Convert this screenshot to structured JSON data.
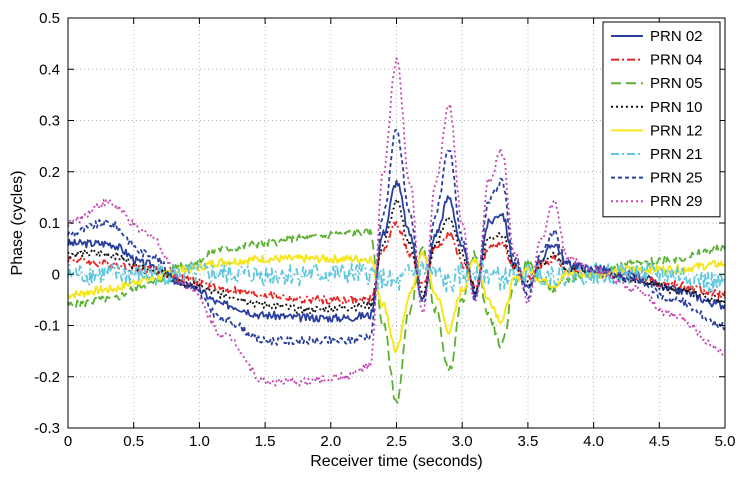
{
  "chart_data": {
    "type": "line",
    "title": "",
    "xlabel": "Receiver time (seconds)",
    "ylabel": "Phase (cycles)",
    "xlim": [
      0,
      5
    ],
    "ylim": [
      -0.3,
      0.5
    ],
    "grid": true,
    "legend_position": "top-right",
    "xticks": [
      0,
      0.5,
      1,
      1.5,
      2,
      2.5,
      3,
      3.5,
      4,
      4.5,
      5
    ],
    "xtick_labels": [
      "0",
      "0.5",
      "1.0",
      "1.5",
      "2.0",
      "2.5",
      "3.0",
      "3.5",
      "4.0",
      "4.5",
      "5.0"
    ],
    "yticks": [
      -0.3,
      -0.2,
      -0.1,
      0,
      0.1,
      0.2,
      0.3,
      0.4,
      0.5
    ],
    "ytick_labels": [
      "-0.3",
      "-0.2",
      "-0.1",
      "0",
      "0.1",
      "0.2",
      "0.3",
      "0.4",
      "0.5"
    ],
    "series": [
      {
        "name": "PRN 02",
        "color": "#2a3f9e",
        "dash": "solid",
        "x": [
          0,
          0.3,
          0.6,
          0.9,
          1.2,
          1.5,
          1.8,
          2.1,
          2.3,
          2.4,
          2.5,
          2.6,
          2.7,
          2.8,
          2.9,
          3.0,
          3.1,
          3.2,
          3.3,
          3.4,
          3.5,
          3.6,
          3.7,
          3.8,
          4.0,
          4.3,
          4.6,
          5.0
        ],
        "y": [
          0.06,
          0.06,
          0.02,
          -0.02,
          -0.06,
          -0.08,
          -0.085,
          -0.085,
          -0.08,
          0.08,
          0.18,
          0.08,
          -0.05,
          0.08,
          0.15,
          0.05,
          -0.04,
          0.1,
          0.12,
          0.02,
          -0.03,
          0.03,
          0.06,
          0.02,
          0.01,
          0.0,
          -0.03,
          -0.06
        ]
      },
      {
        "name": "PRN 04",
        "color": "#e8231f",
        "dash": "dashdot",
        "x": [
          0,
          0.3,
          0.6,
          0.9,
          1.2,
          1.5,
          1.8,
          2.1,
          2.3,
          2.4,
          2.5,
          2.6,
          2.7,
          2.8,
          2.9,
          3.0,
          3.1,
          3.2,
          3.3,
          3.4,
          3.5,
          3.6,
          3.7,
          3.8,
          4.0,
          4.3,
          4.6,
          5.0
        ],
        "y": [
          0.03,
          0.02,
          0.01,
          -0.01,
          -0.03,
          -0.04,
          -0.05,
          -0.05,
          -0.05,
          0.05,
          0.1,
          0.04,
          -0.02,
          0.05,
          0.08,
          0.02,
          -0.02,
          0.05,
          0.06,
          0.01,
          -0.01,
          0.02,
          0.03,
          0.01,
          0.0,
          -0.01,
          -0.02,
          -0.04
        ]
      },
      {
        "name": "PRN 05",
        "color": "#5cb032",
        "dash": "longdash",
        "x": [
          0,
          0.3,
          0.6,
          0.9,
          1.2,
          1.5,
          1.8,
          2.1,
          2.3,
          2.4,
          2.5,
          2.6,
          2.7,
          2.8,
          2.9,
          3.0,
          3.1,
          3.2,
          3.3,
          3.4,
          3.5,
          3.6,
          3.7,
          3.8,
          4.0,
          4.3,
          4.6,
          5.0
        ],
        "y": [
          -0.06,
          -0.05,
          -0.02,
          0.02,
          0.05,
          0.06,
          0.07,
          0.08,
          0.08,
          -0.1,
          -0.25,
          -0.07,
          0.05,
          -0.07,
          -0.19,
          -0.05,
          0.04,
          -0.08,
          -0.14,
          -0.02,
          0.02,
          -0.01,
          -0.03,
          -0.01,
          0.0,
          0.02,
          0.03,
          0.05
        ]
      },
      {
        "name": "PRN 10",
        "color": "#111111",
        "dash": "dotted",
        "x": [
          0,
          0.3,
          0.6,
          0.9,
          1.2,
          1.5,
          1.8,
          2.1,
          2.3,
          2.4,
          2.5,
          2.6,
          2.7,
          2.8,
          2.9,
          3.0,
          3.1,
          3.2,
          3.3,
          3.4,
          3.5,
          3.6,
          3.7,
          3.8,
          4.0,
          4.3,
          4.6,
          5.0
        ],
        "y": [
          0.04,
          0.04,
          0.01,
          -0.02,
          -0.04,
          -0.06,
          -0.07,
          -0.065,
          -0.06,
          0.06,
          0.14,
          0.06,
          -0.04,
          0.06,
          0.11,
          0.04,
          -0.03,
          0.07,
          0.08,
          0.01,
          -0.02,
          0.02,
          0.04,
          0.01,
          0.0,
          -0.01,
          -0.03,
          -0.05
        ]
      },
      {
        "name": "PRN 12",
        "color": "#f5e61e",
        "dash": "solid",
        "x": [
          0,
          0.3,
          0.6,
          0.9,
          1.2,
          1.5,
          1.8,
          2.1,
          2.3,
          2.4,
          2.5,
          2.6,
          2.7,
          2.8,
          2.9,
          3.0,
          3.1,
          3.2,
          3.3,
          3.4,
          3.5,
          3.6,
          3.7,
          3.8,
          4.0,
          4.3,
          4.6,
          5.0
        ],
        "y": [
          -0.04,
          -0.03,
          -0.01,
          0.01,
          0.025,
          0.03,
          0.03,
          0.03,
          0.03,
          -0.06,
          -0.15,
          -0.04,
          0.04,
          -0.04,
          -0.11,
          -0.03,
          0.03,
          -0.05,
          -0.09,
          -0.01,
          0.01,
          -0.01,
          -0.02,
          0.0,
          0.0,
          0.01,
          0.01,
          0.02
        ]
      },
      {
        "name": "PRN 21",
        "color": "#5fc8dc",
        "dash": "dashdot",
        "x": [
          0,
          0.3,
          0.6,
          0.9,
          1.2,
          1.5,
          1.8,
          2.1,
          2.3,
          2.4,
          2.5,
          2.6,
          2.7,
          2.8,
          2.9,
          3.0,
          3.1,
          3.2,
          3.3,
          3.4,
          3.5,
          3.6,
          3.7,
          3.8,
          4.0,
          4.3,
          4.6,
          5.0
        ],
        "y": [
          0.0,
          0.0,
          0.0,
          0.0,
          0.0,
          0.0,
          0.0,
          0.0,
          0.0,
          -0.01,
          -0.02,
          0.0,
          0.01,
          0.0,
          -0.02,
          0.0,
          0.01,
          0.0,
          -0.01,
          0.0,
          0.0,
          0.0,
          0.0,
          0.0,
          0.0,
          0.0,
          0.0,
          -0.02
        ]
      },
      {
        "name": "PRN 25",
        "color": "#2a3f9e",
        "dash": "shortdash",
        "x": [
          0,
          0.3,
          0.6,
          0.9,
          1.2,
          1.5,
          1.8,
          2.1,
          2.3,
          2.4,
          2.5,
          2.6,
          2.7,
          2.8,
          2.9,
          3.0,
          3.1,
          3.2,
          3.3,
          3.4,
          3.5,
          3.6,
          3.7,
          3.8,
          4.0,
          4.3,
          4.6,
          5.0
        ],
        "y": [
          0.08,
          0.1,
          0.04,
          -0.02,
          -0.09,
          -0.13,
          -0.13,
          -0.13,
          -0.12,
          0.12,
          0.28,
          0.12,
          -0.06,
          0.12,
          0.24,
          0.07,
          -0.05,
          0.14,
          0.18,
          0.03,
          -0.04,
          0.04,
          0.08,
          0.02,
          0.01,
          -0.01,
          -0.05,
          -0.1
        ]
      },
      {
        "name": "PRN 29",
        "color": "#c544b0",
        "dash": "dotted",
        "x": [
          0,
          0.3,
          0.6,
          0.9,
          1.2,
          1.5,
          1.8,
          2.1,
          2.3,
          2.4,
          2.5,
          2.6,
          2.7,
          2.8,
          2.9,
          3.0,
          3.1,
          3.2,
          3.3,
          3.4,
          3.5,
          3.6,
          3.7,
          3.8,
          4.0,
          4.3,
          4.6,
          5.0
        ],
        "y": [
          0.1,
          0.14,
          0.08,
          -0.02,
          -0.12,
          -0.21,
          -0.21,
          -0.2,
          -0.18,
          0.2,
          0.42,
          0.18,
          -0.08,
          0.18,
          0.33,
          0.1,
          -0.06,
          0.18,
          0.24,
          0.04,
          -0.05,
          0.07,
          0.14,
          0.03,
          0.01,
          -0.03,
          -0.08,
          -0.15
        ]
      }
    ]
  }
}
